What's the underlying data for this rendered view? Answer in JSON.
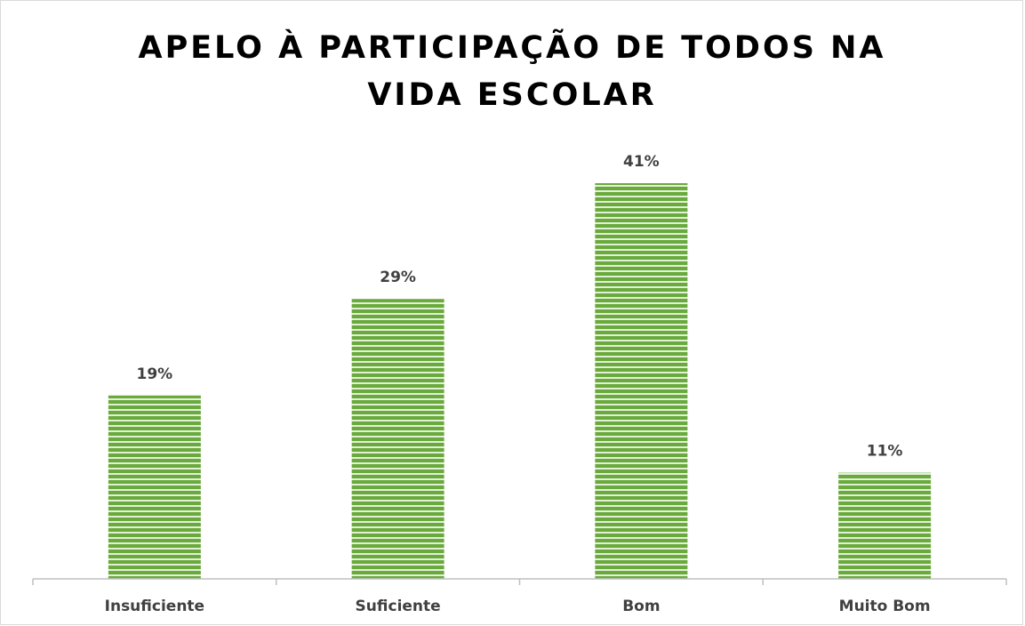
{
  "chart_data": {
    "type": "bar",
    "title": "APELO À PARTICIPAÇÃO DE TODOS NA VIDA ESCOLAR",
    "categories": [
      "Insuficiente",
      "Suficiente",
      "Bom",
      "Muito Bom"
    ],
    "values": [
      19,
      29,
      41,
      11
    ],
    "value_labels": [
      "19%",
      "29%",
      "41%",
      "11%"
    ],
    "color": "#6aaa3c"
  }
}
